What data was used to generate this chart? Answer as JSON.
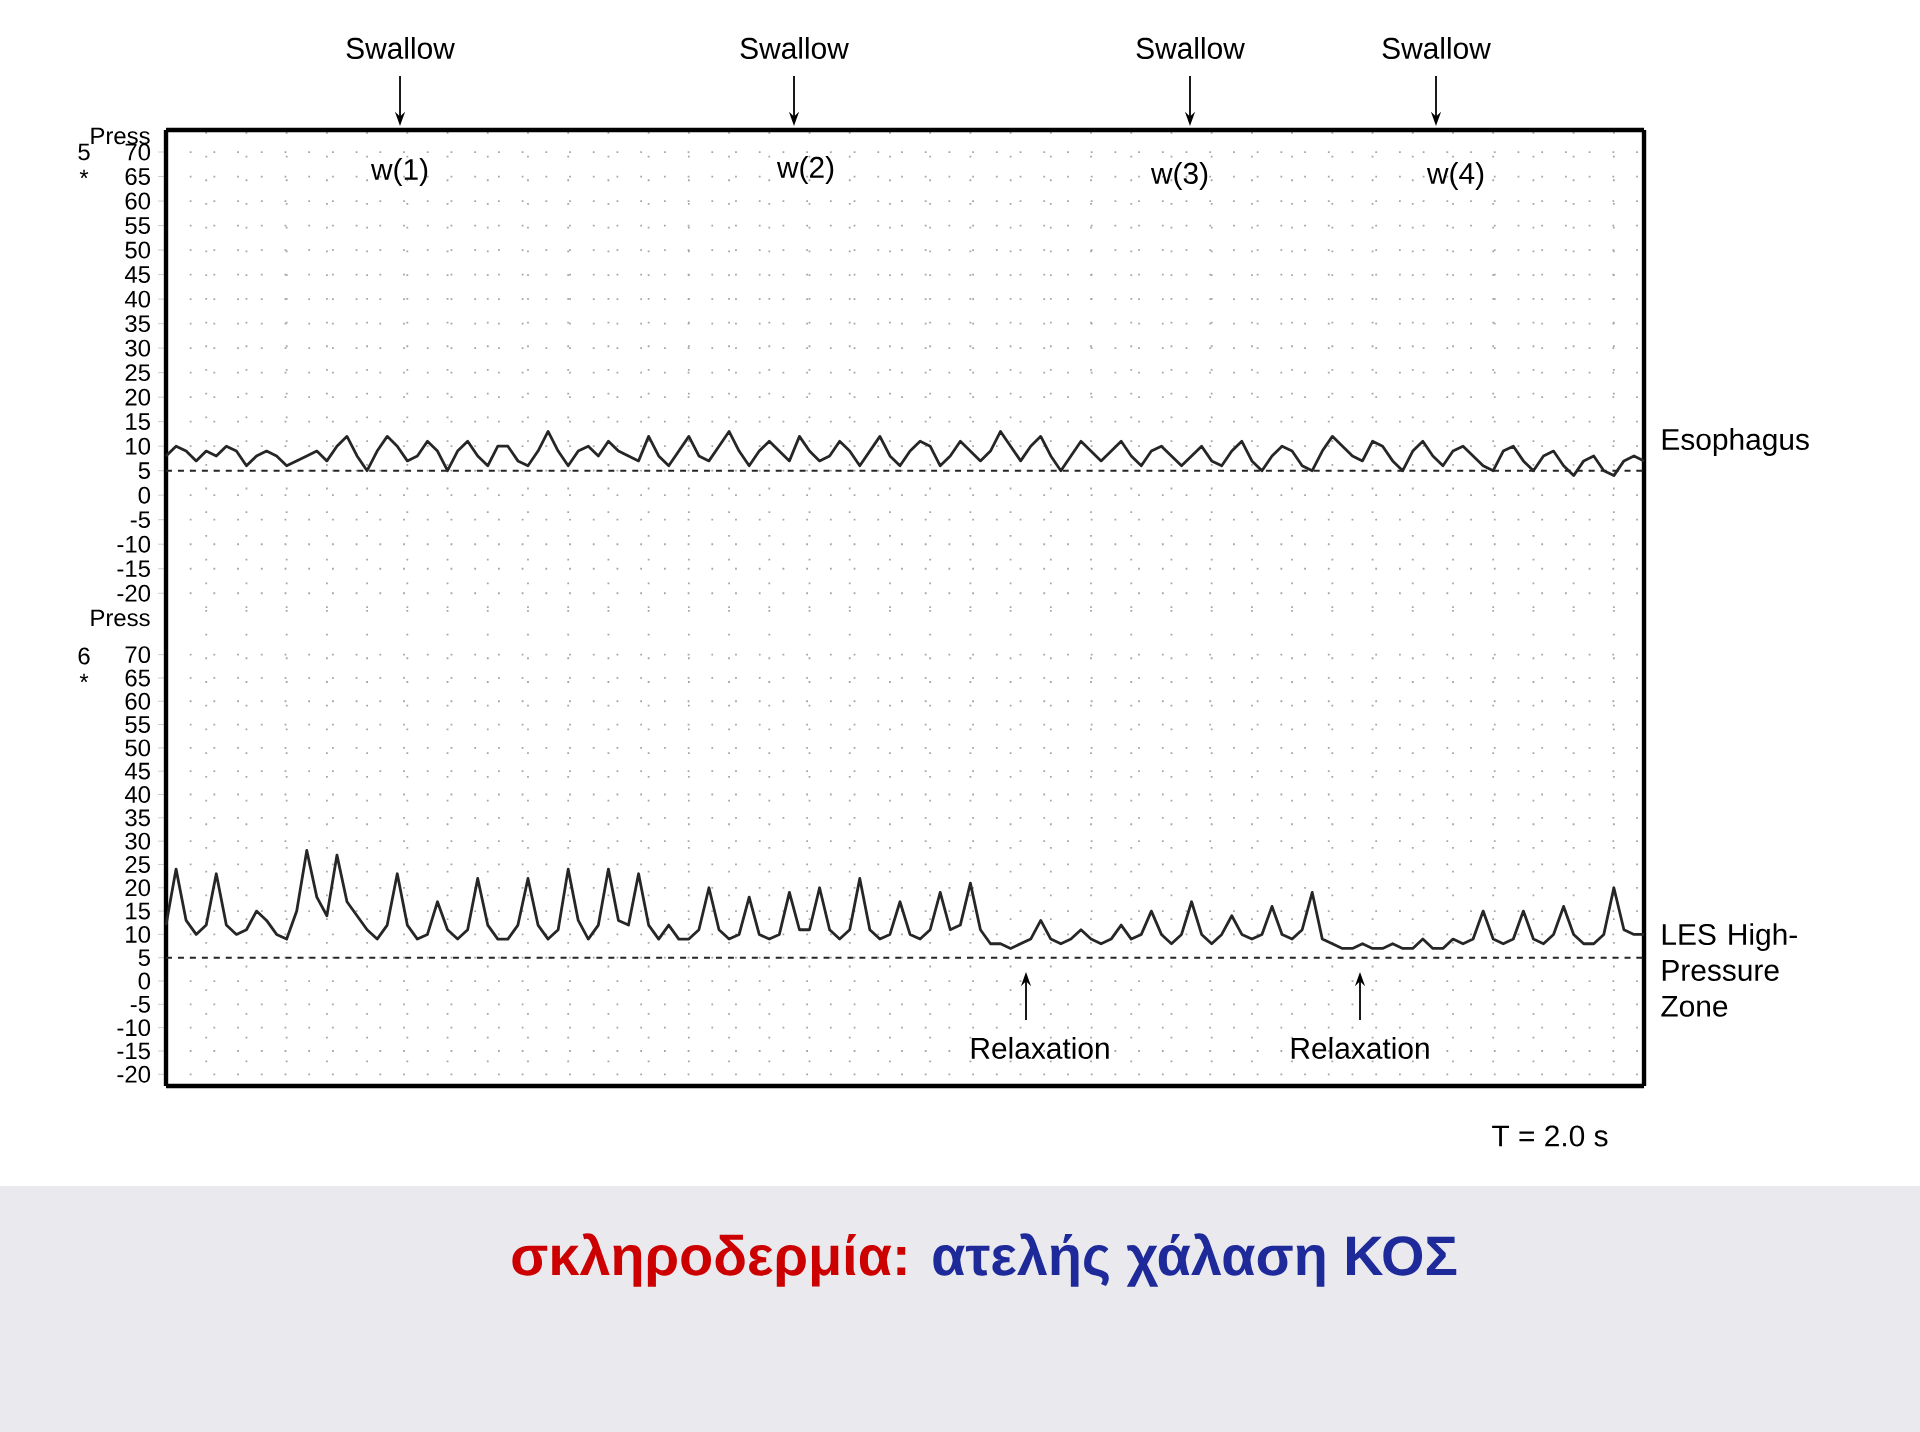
{
  "chart_data": [
    {
      "type": "line",
      "ylabel": "Press",
      "categories": [
        null,
        null,
        null,
        null,
        null,
        null,
        null,
        null,
        null,
        null,
        null,
        null,
        null,
        null,
        null,
        null,
        null,
        null,
        null,
        null,
        null,
        null,
        null,
        null,
        null,
        null,
        null,
        null,
        null,
        null,
        null,
        null,
        null,
        null,
        null,
        null,
        null,
        null,
        null,
        null,
        null,
        null,
        null,
        null,
        null,
        null,
        null,
        null,
        null,
        null,
        null,
        null,
        null,
        null,
        null,
        null,
        null,
        null,
        null,
        null,
        null,
        null,
        null,
        null,
        null,
        null,
        null,
        null,
        null,
        null,
        null,
        null,
        null,
        null,
        null,
        null,
        null,
        null,
        null,
        null,
        null,
        null,
        null,
        null,
        null,
        null,
        null,
        null,
        null,
        null,
        null,
        null,
        null,
        null,
        null,
        null,
        null,
        null,
        null,
        null,
        null,
        null,
        null,
        null,
        null,
        null,
        null,
        null,
        null,
        null,
        null,
        null,
        null,
        null,
        null,
        null,
        null,
        null,
        null,
        null,
        null,
        null,
        null,
        null,
        null,
        null,
        null,
        null,
        null,
        null,
        null,
        null,
        null,
        null,
        null,
        null,
        null,
        null,
        null,
        null,
        null,
        null,
        null,
        null,
        null,
        null,
        null,
        null
      ],
      "series": [
        {
          "name": "Esophagus",
          "color": "#262626",
          "values": [
            8,
            10,
            9,
            7,
            9,
            8,
            10,
            9,
            6,
            8,
            9,
            8,
            6,
            7,
            8,
            9,
            7,
            10,
            12,
            8,
            5,
            9,
            12,
            10,
            7,
            8,
            11,
            9,
            5,
            9,
            11,
            8,
            6,
            10,
            10,
            7,
            6,
            9,
            13,
            9,
            6,
            9,
            10,
            8,
            11,
            9,
            8,
            7,
            12,
            8,
            6,
            9,
            12,
            8,
            7,
            10,
            13,
            9,
            6,
            9,
            11,
            9,
            7,
            12,
            9,
            7,
            8,
            11,
            9,
            6,
            9,
            12,
            8,
            6,
            9,
            11,
            10,
            6,
            8,
            11,
            9,
            7,
            9,
            13,
            10,
            7,
            10,
            12,
            8,
            5,
            8,
            11,
            9,
            7,
            9,
            11,
            8,
            6,
            9,
            10,
            8,
            6,
            8,
            10,
            7,
            6,
            9,
            11,
            7,
            5,
            8,
            10,
            9,
            6,
            5,
            9,
            12,
            10,
            8,
            7,
            11,
            10,
            7,
            5,
            9,
            11,
            8,
            6,
            9,
            10,
            8,
            6,
            5,
            9,
            10,
            7,
            5,
            8,
            9,
            6,
            4,
            7,
            8,
            5,
            4,
            7,
            8,
            7
          ]
        }
      ],
      "ylim": [
        -23,
        74.5
      ],
      "yticks": [
        -20,
        -15,
        -10,
        -5,
        0,
        5,
        10,
        15,
        20,
        25,
        30,
        35,
        40,
        45,
        50,
        55,
        60,
        65,
        70
      ],
      "grid": true,
      "tick_labels": "y",
      "marker": "none",
      "line_style": "solid",
      "ref_lines": [
        {
          "axis": "y",
          "value": 5,
          "line_style": "dashed",
          "color": "#262626"
        }
      ],
      "annotations": [
        "Swallow",
        "Swallow",
        "Swallow",
        "Swallow",
        "w(1)",
        "w(2)",
        "w(3)",
        "w(4)",
        "5",
        "*"
      ]
    },
    {
      "type": "line",
      "ylabel": "Press",
      "title": "σκληροδερμία:",
      "subtitle": "ατελής χάλαση ΚΟΣ",
      "categories": [
        null,
        null,
        null,
        null,
        null,
        null,
        null,
        null,
        null,
        null,
        null,
        null,
        null,
        null,
        null,
        null,
        null,
        null,
        null,
        null,
        null,
        null,
        null,
        null,
        null,
        null,
        null,
        null,
        null,
        null,
        null,
        null,
        null,
        null,
        null,
        null,
        null,
        null,
        null,
        null,
        null,
        null,
        null,
        null,
        null,
        null,
        null,
        null,
        null,
        null,
        null,
        null,
        null,
        null,
        null,
        null,
        null,
        null,
        null,
        null,
        null,
        null,
        null,
        null,
        null,
        null,
        null,
        null,
        null,
        null,
        null,
        null,
        null,
        null,
        null,
        null,
        null,
        null,
        null,
        null,
        null,
        null,
        null,
        null,
        null,
        null,
        null,
        null,
        null,
        null,
        null,
        null,
        null,
        null,
        null,
        null,
        null,
        null,
        null,
        null,
        null,
        null,
        null,
        null,
        null,
        null,
        null,
        null,
        null,
        null,
        null,
        null,
        null,
        null,
        null,
        null,
        null,
        null,
        null,
        null,
        null,
        null,
        null,
        null,
        null,
        null,
        null,
        null,
        null,
        null,
        null,
        null,
        null,
        null,
        null,
        null,
        null,
        null,
        null,
        null,
        null,
        null,
        null,
        null,
        null,
        null,
        null,
        null
      ],
      "series": [
        {
          "name": "LES High-Pressure Zone",
          "color": "#262626",
          "values": [
            12,
            24,
            13,
            10,
            12,
            23,
            12,
            10,
            11,
            15,
            13,
            10,
            9,
            15,
            28,
            18,
            14,
            27,
            17,
            14,
            11,
            9,
            12,
            23,
            12,
            9,
            10,
            17,
            11,
            9,
            11,
            22,
            12,
            9,
            9,
            12,
            22,
            12,
            9,
            11,
            24,
            13,
            9,
            12,
            24,
            13,
            12,
            23,
            12,
            9,
            12,
            9,
            9,
            11,
            20,
            11,
            9,
            10,
            18,
            10,
            9,
            10,
            19,
            11,
            11,
            20,
            11,
            9,
            11,
            22,
            11,
            9,
            10,
            17,
            10,
            9,
            11,
            19,
            11,
            12,
            21,
            11,
            8,
            8,
            7,
            8,
            9,
            13,
            9,
            8,
            9,
            11,
            9,
            8,
            9,
            12,
            9,
            10,
            15,
            10,
            8,
            10,
            17,
            10,
            8,
            10,
            14,
            10,
            9,
            10,
            16,
            10,
            9,
            11,
            19,
            9,
            8,
            7,
            7,
            8,
            7,
            7,
            8,
            7,
            7,
            9,
            7,
            7,
            9,
            8,
            9,
            15,
            9,
            8,
            9,
            15,
            9,
            8,
            10,
            16,
            10,
            8,
            8,
            10,
            20,
            11,
            10,
            10
          ]
        }
      ],
      "ylim": [
        -22.5,
        80
      ],
      "yticks": [
        -20,
        -15,
        -10,
        -5,
        0,
        5,
        10,
        15,
        20,
        25,
        30,
        35,
        40,
        45,
        50,
        55,
        60,
        65,
        70
      ],
      "grid": true,
      "tick_labels": "y",
      "marker": "none",
      "line_style": "solid",
      "ref_lines": [
        {
          "axis": "y",
          "value": 5,
          "line_style": "dashed",
          "color": "#262626"
        }
      ],
      "annotations": [
        "Relaxation",
        "Relaxation",
        "6",
        "*",
        "T = 2.0 s"
      ]
    }
  ]
}
